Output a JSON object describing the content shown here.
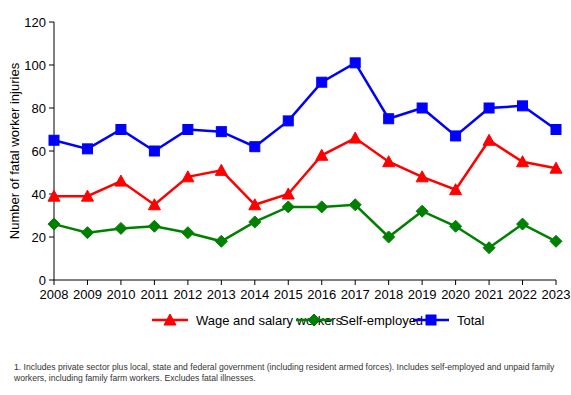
{
  "chart_data": {
    "type": "line",
    "y_label": "Number of fatal worker injuries",
    "categories": [
      "2008",
      "2009",
      "2010",
      "2011",
      "2012",
      "2013",
      "2014",
      "2015",
      "2016",
      "2017",
      "2018",
      "2019",
      "2020",
      "2021",
      "2022",
      "2023"
    ],
    "series": [
      {
        "name": "Wage and salary workers",
        "color": "#ff0000",
        "marker": "triangle",
        "values": [
          39,
          39,
          46,
          35,
          48,
          51,
          35,
          40,
          58,
          66,
          55,
          48,
          42,
          65,
          55,
          52
        ]
      },
      {
        "name": "Self-employed",
        "color": "#008000",
        "marker": "diamond",
        "values": [
          26,
          22,
          24,
          25,
          22,
          18,
          27,
          34,
          34,
          35,
          20,
          32,
          25,
          15,
          26,
          18
        ]
      },
      {
        "name": "Total",
        "color": "#0000ff",
        "marker": "square",
        "values": [
          65,
          61,
          70,
          60,
          70,
          69,
          62,
          74,
          92,
          101,
          75,
          80,
          67,
          80,
          81,
          70
        ]
      }
    ],
    "ylim": [
      0,
      120
    ],
    "yticks": [
      0,
      20,
      40,
      60,
      80,
      100,
      120
    ],
    "grid": false,
    "legend": "bottom",
    "footnote": "1. Includes private sector plus local, state and federal government (including resident armed forces). Includes self-employed and unpaid family workers, including family farm workers. Excludes fatal illnesses."
  }
}
